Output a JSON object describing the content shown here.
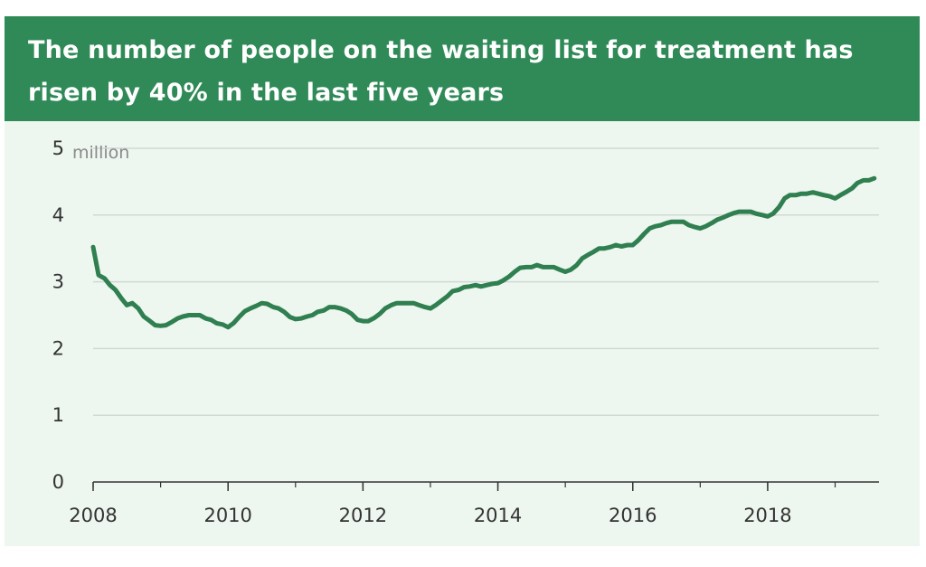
{
  "chart_data": {
    "type": "line",
    "title": "The number of people on the waiting list for treatment has risen by 40% in the last five years",
    "title_lines": [
      "The number of people on the waiting list for treatment has",
      "risen by 40% in the last five years"
    ],
    "ylabel": "million",
    "xlabel": "",
    "xlim": [
      2008,
      2019.65
    ],
    "ylim": [
      0,
      5
    ],
    "yticks": [
      0,
      1,
      2,
      3,
      4,
      5
    ],
    "xticks": [
      2008,
      2010,
      2012,
      2014,
      2016,
      2018
    ],
    "grid": true,
    "colors": {
      "line": "#2f7f50",
      "header": "#2f8a57",
      "background": "#edf6ef",
      "grid": "#d2d9d4"
    },
    "series": [
      {
        "x": [
          2008.0,
          2008.08,
          2008.17,
          2008.25,
          2008.33,
          2008.42,
          2008.5,
          2008.58,
          2008.67,
          2008.75,
          2008.83,
          2008.92,
          2009.0,
          2009.08,
          2009.17,
          2009.25,
          2009.33,
          2009.42,
          2009.5,
          2009.58,
          2009.67,
          2009.75,
          2009.83,
          2009.92,
          2010.0,
          2010.08,
          2010.17,
          2010.25,
          2010.33,
          2010.42,
          2010.5,
          2010.58,
          2010.67,
          2010.75,
          2010.83,
          2010.92,
          2011.0,
          2011.08,
          2011.17,
          2011.25,
          2011.33,
          2011.42,
          2011.5,
          2011.58,
          2011.67,
          2011.75,
          2011.83,
          2011.92,
          2012.0,
          2012.08,
          2012.17,
          2012.25,
          2012.33,
          2012.42,
          2012.5,
          2012.58,
          2012.67,
          2012.75,
          2012.83,
          2012.92,
          2013.0,
          2013.08,
          2013.17,
          2013.25,
          2013.33,
          2013.42,
          2013.5,
          2013.58,
          2013.67,
          2013.75,
          2013.83,
          2013.92,
          2014.0,
          2014.08,
          2014.17,
          2014.25,
          2014.33,
          2014.42,
          2014.5,
          2014.58,
          2014.67,
          2014.75,
          2014.83,
          2014.92,
          2015.0,
          2015.08,
          2015.17,
          2015.25,
          2015.33,
          2015.42,
          2015.5,
          2015.58,
          2015.67,
          2015.75,
          2015.83,
          2015.92,
          2016.0,
          2016.08,
          2016.17,
          2016.25,
          2016.33,
          2016.42,
          2016.5,
          2016.58,
          2016.67,
          2016.75,
          2016.83,
          2016.92,
          2017.0,
          2017.08,
          2017.17,
          2017.25,
          2017.33,
          2017.42,
          2017.5,
          2017.58,
          2017.67,
          2017.75,
          2017.83,
          2017.92,
          2018.0,
          2018.08,
          2018.17,
          2018.25,
          2018.33,
          2018.42,
          2018.5,
          2018.58,
          2018.67,
          2018.75,
          2018.83,
          2018.92,
          2019.0,
          2019.08,
          2019.17,
          2019.25,
          2019.33,
          2019.42,
          2019.5,
          2019.58
        ],
        "values": [
          3.52,
          3.1,
          3.05,
          2.95,
          2.88,
          2.75,
          2.65,
          2.68,
          2.6,
          2.48,
          2.42,
          2.35,
          2.34,
          2.35,
          2.4,
          2.45,
          2.48,
          2.5,
          2.5,
          2.5,
          2.45,
          2.43,
          2.38,
          2.36,
          2.32,
          2.38,
          2.48,
          2.56,
          2.6,
          2.64,
          2.68,
          2.67,
          2.62,
          2.6,
          2.55,
          2.47,
          2.44,
          2.45,
          2.48,
          2.5,
          2.55,
          2.57,
          2.62,
          2.62,
          2.6,
          2.57,
          2.52,
          2.43,
          2.41,
          2.41,
          2.46,
          2.52,
          2.6,
          2.65,
          2.68,
          2.68,
          2.68,
          2.68,
          2.65,
          2.62,
          2.6,
          2.65,
          2.72,
          2.78,
          2.86,
          2.88,
          2.92,
          2.93,
          2.95,
          2.93,
          2.95,
          2.97,
          2.98,
          3.02,
          3.08,
          3.15,
          3.21,
          3.22,
          3.22,
          3.25,
          3.22,
          3.22,
          3.22,
          3.18,
          3.15,
          3.18,
          3.25,
          3.35,
          3.4,
          3.45,
          3.5,
          3.5,
          3.52,
          3.55,
          3.53,
          3.55,
          3.55,
          3.62,
          3.72,
          3.8,
          3.83,
          3.85,
          3.88,
          3.9,
          3.9,
          3.9,
          3.85,
          3.82,
          3.8,
          3.83,
          3.88,
          3.93,
          3.96,
          4.0,
          4.03,
          4.05,
          4.05,
          4.05,
          4.02,
          4.0,
          3.98,
          4.02,
          4.12,
          4.25,
          4.3,
          4.3,
          4.32,
          4.32,
          4.34,
          4.32,
          4.3,
          4.28,
          4.25,
          4.3,
          4.35,
          4.4,
          4.48,
          4.52,
          4.52,
          4.55
        ]
      }
    ]
  }
}
